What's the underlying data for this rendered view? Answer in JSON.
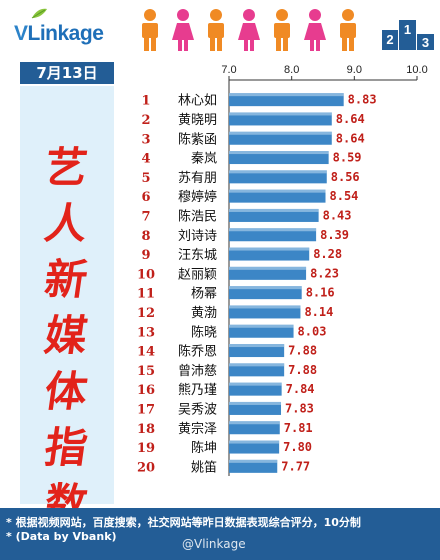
{
  "brand": {
    "logo_text": "VLinkage",
    "logo_v": "V",
    "logo_rest": "Linkage"
  },
  "date_label": "7月13日",
  "side_title": [
    "艺",
    "人",
    "新",
    "媒",
    "体",
    "指",
    "数"
  ],
  "colors": {
    "accent": "#235d96",
    "bar": "#3c86c6",
    "bar_highlight": "#b7d7ef",
    "value": "#c0201a",
    "title": "#e2231a",
    "panel": "#dff0fa"
  },
  "chart_data": {
    "type": "bar",
    "orientation": "horizontal",
    "xlim": [
      7.0,
      10.0
    ],
    "ticks": [
      "7.0",
      "8.0",
      "9.0",
      "10.0"
    ],
    "tick_values": [
      7.0,
      8.0,
      9.0,
      10.0
    ],
    "ranks": [
      "1",
      "2",
      "3",
      "4",
      "5",
      "6",
      "7",
      "8",
      "9",
      "10",
      "11",
      "12",
      "13",
      "14",
      "15",
      "16",
      "17",
      "18",
      "19",
      "20"
    ],
    "categories": [
      "林心如",
      "黄晓明",
      "陈紫函",
      "秦岚",
      "苏有朋",
      "穆婷婷",
      "陈浩民",
      "刘诗诗",
      "汪东城",
      "赵丽颖",
      "杨幂",
      "黄渤",
      "陈晓",
      "陈乔恩",
      "曾沛慈",
      "熊乃瑾",
      "吴秀波",
      "黄宗泽",
      "陈坤",
      "姚笛"
    ],
    "values": [
      8.83,
      8.64,
      8.64,
      8.59,
      8.56,
      8.54,
      8.43,
      8.39,
      8.28,
      8.23,
      8.16,
      8.14,
      8.03,
      7.88,
      7.88,
      7.84,
      7.83,
      7.81,
      7.8,
      7.77
    ],
    "value_labels": [
      "8.83",
      "8.64",
      "8.64",
      "8.59",
      "8.56",
      "8.54",
      "8.43",
      "8.39",
      "8.28",
      "8.23",
      "8.16",
      "8.14",
      "8.03",
      "7.88",
      "7.88",
      "7.84",
      "7.83",
      "7.81",
      "7.80",
      "7.77"
    ]
  },
  "footer": {
    "note1": "* 根据视频网站，百度搜索，社交网站等昨日数据表现综合评分，10分制",
    "note2": "* (Data by Vbank)",
    "watermark": "@Vlinkage"
  }
}
